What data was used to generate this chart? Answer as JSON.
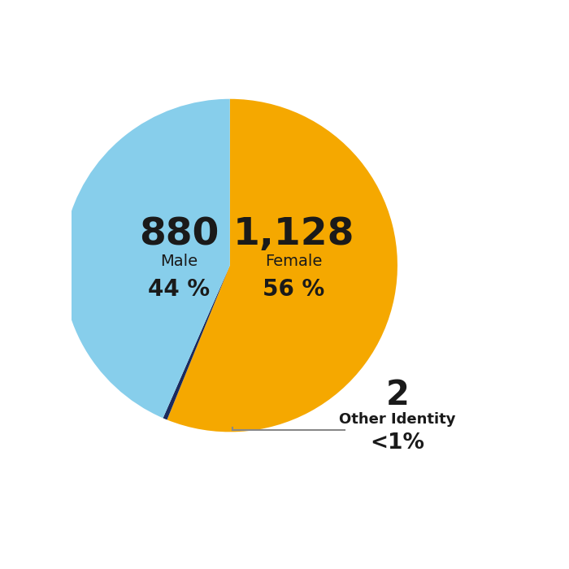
{
  "slices": [
    {
      "label": "Male",
      "value": 880,
      "pct": 44,
      "color": "#87CEEB"
    },
    {
      "label": "Female",
      "value": 1128,
      "pct": 56,
      "color": "#F5A800"
    },
    {
      "label": "Other Identity",
      "value": 2,
      "pct_label": "<1%",
      "color": "#1A2A5E"
    }
  ],
  "text_color": "#1a1a1a",
  "background_color": "#ffffff",
  "male_num_label": "880",
  "male_cat_label": "Male",
  "male_pct_label": "44 %",
  "female_num_label": "1,128",
  "female_cat_label": "Female",
  "female_pct_label": "56 %",
  "other_num_label": "2",
  "other_cat_label": "Other Identity",
  "other_pct_label": "<1%"
}
